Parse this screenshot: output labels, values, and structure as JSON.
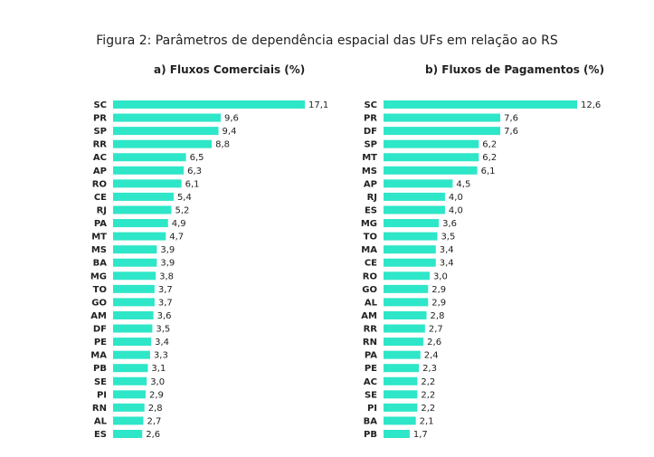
{
  "figure_title": "Figura 2: Parâmetros de dependência espacial das UFs em relação ao RS",
  "colors": {
    "bar": "#2ee6c8",
    "text": "#222222"
  },
  "chart_data": [
    {
      "type": "bar",
      "orientation": "horizontal",
      "title": "a)    Fluxos Comerciais (%)",
      "categories": [
        "SC",
        "PR",
        "SP",
        "RR",
        "AC",
        "AP",
        "RO",
        "CE",
        "RJ",
        "PA",
        "MT",
        "MS",
        "BA",
        "MG",
        "TO",
        "GO",
        "AM",
        "DF",
        "PE",
        "MA",
        "PB",
        "SE",
        "PI",
        "RN",
        "AL",
        "ES"
      ],
      "values": [
        17.1,
        9.6,
        9.4,
        8.8,
        6.5,
        6.3,
        6.1,
        5.4,
        5.2,
        4.9,
        4.7,
        3.9,
        3.9,
        3.8,
        3.7,
        3.7,
        3.6,
        3.5,
        3.4,
        3.3,
        3.1,
        3.0,
        2.9,
        2.8,
        2.7,
        2.6
      ],
      "labels": [
        "17,1",
        "9,6",
        "9,4",
        "8,8",
        "6,5",
        "6,3",
        "6,1",
        "5,4",
        "5,2",
        "4,9",
        "4,7",
        "3,9",
        "3,9",
        "3,8",
        "3,7",
        "3,7",
        "3,6",
        "3,5",
        "3,4",
        "3,3",
        "3,1",
        "3,0",
        "2,9",
        "2,8",
        "2,7",
        "2,6"
      ]
    },
    {
      "type": "bar",
      "orientation": "horizontal",
      "title": "b) Fluxos de Pagamentos (%)",
      "categories": [
        "SC",
        "PR",
        "DF",
        "SP",
        "MT",
        "MS",
        "AP",
        "RJ",
        "ES",
        "MG",
        "TO",
        "MA",
        "CE",
        "RO",
        "GO",
        "AL",
        "AM",
        "RR",
        "RN",
        "PA",
        "PE",
        "AC",
        "SE",
        "PI",
        "BA",
        "PB"
      ],
      "values": [
        12.6,
        7.6,
        7.6,
        6.2,
        6.2,
        6.1,
        4.5,
        4.0,
        4.0,
        3.6,
        3.5,
        3.4,
        3.4,
        3.0,
        2.9,
        2.9,
        2.8,
        2.7,
        2.6,
        2.4,
        2.3,
        2.2,
        2.2,
        2.2,
        2.1,
        1.7
      ],
      "labels": [
        "12,6",
        "7,6",
        "7,6",
        "6,2",
        "6,2",
        "6,1",
        "4,5",
        "4,0",
        "4,0",
        "3,6",
        "3,5",
        "3,4",
        "3,4",
        "3,0",
        "2,9",
        "2,9",
        "2,8",
        "2,7",
        "2,6",
        "2,4",
        "2,3",
        "2,2",
        "2,2",
        "2,2",
        "2,1",
        "1,7"
      ]
    }
  ]
}
